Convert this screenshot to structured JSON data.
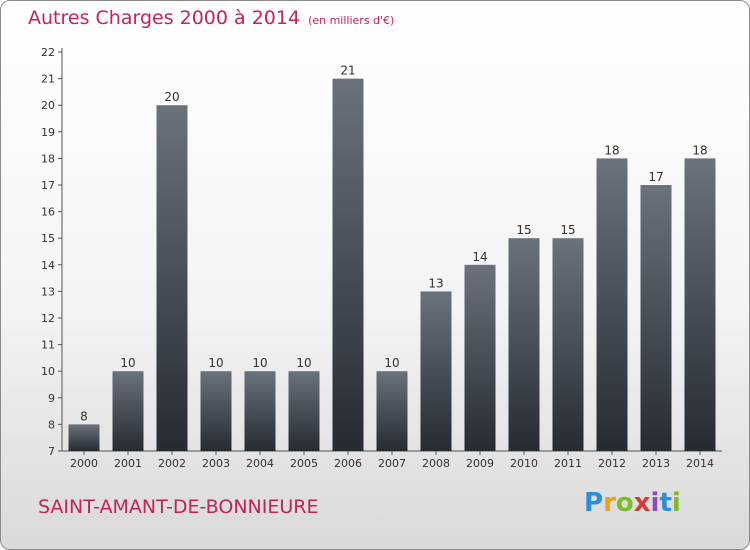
{
  "title": "Autres Charges 2000 à 2014",
  "unit": "(en milliers d'€)",
  "commune": "SAINT-AMANT-DE-BONNIEURE",
  "logo": "Proxiti",
  "colors": {
    "accent": "#c0245a",
    "bar": "#40474f"
  },
  "chart_data": {
    "type": "bar",
    "title": "Autres Charges 2000 à 2014",
    "xlabel": "",
    "ylabel": "(en milliers d'€)",
    "categories": [
      "2000",
      "2001",
      "2002",
      "2003",
      "2004",
      "2005",
      "2006",
      "2007",
      "2008",
      "2009",
      "2010",
      "2011",
      "2012",
      "2013",
      "2014"
    ],
    "values": [
      8,
      10,
      20,
      10,
      10,
      10,
      21,
      10,
      13,
      14,
      15,
      15,
      18,
      17,
      18
    ],
    "ylim": [
      7,
      22
    ],
    "yticks": [
      7,
      8,
      9,
      10,
      11,
      12,
      13,
      14,
      15,
      16,
      17,
      18,
      19,
      20,
      21,
      22
    ],
    "grid": false
  }
}
